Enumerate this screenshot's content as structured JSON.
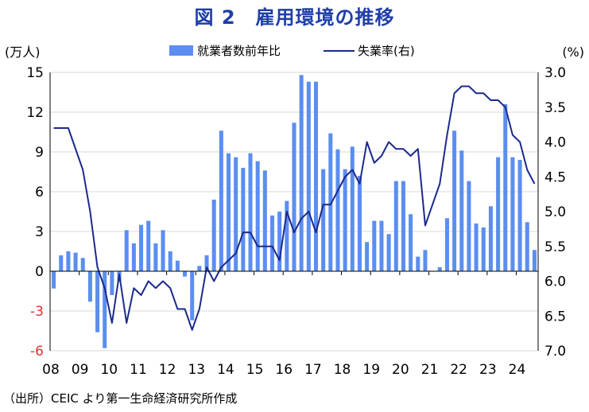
{
  "title": "図 2　雇用環境の推移",
  "source": "（出所）CEIC より第一生命経済研究所作成",
  "chart_data": {
    "type": "bar+line",
    "title": "図 2　雇用環境の推移",
    "y_left_label": "(万人)",
    "y_right_label": "(%)",
    "y_left_range": [
      -6,
      15
    ],
    "y_left_ticks": [
      "15",
      "12",
      "9",
      "6",
      "3",
      "0",
      "-3",
      "-6"
    ],
    "y_right_range": [
      3.0,
      7.0
    ],
    "y_right_inverted": true,
    "y_right_ticks": [
      "3.0",
      "3.5",
      "4.0",
      "4.5",
      "5.0",
      "5.5",
      "6.0",
      "6.5",
      "7.0"
    ],
    "x_tick_labels": [
      "08",
      "09",
      "10",
      "11",
      "12",
      "13",
      "14",
      "15",
      "16",
      "17",
      "18",
      "19",
      "20",
      "21",
      "22",
      "23",
      "24"
    ],
    "grid": "horizontal",
    "legend_position": "top",
    "series": [
      {
        "name": "就業者数前年比",
        "type": "bar",
        "axis": "left",
        "color": "#5b8ef0",
        "values": [
          -1.3,
          1.2,
          1.5,
          1.4,
          1.0,
          -2.3,
          -4.6,
          -5.8,
          -1.8,
          -0.8,
          3.1,
          2.1,
          3.5,
          3.8,
          2.1,
          3.1,
          1.5,
          0.8,
          -0.4,
          -3.7,
          0.4,
          1.2,
          5.4,
          10.6,
          8.9,
          8.6,
          7.8,
          8.9,
          8.3,
          7.6,
          4.2,
          4.5,
          5.3,
          11.2,
          14.8,
          14.3,
          14.3,
          7.7,
          10.4,
          9.2,
          7.7,
          9.4,
          7.2,
          2.2,
          3.8,
          3.8,
          2.8,
          6.8,
          6.8,
          4.3,
          1.1,
          1.6,
          0.0,
          0.3,
          4.0,
          10.6,
          9.1,
          6.8,
          3.6,
          3.3,
          4.9,
          8.6,
          12.6,
          8.6,
          8.4,
          3.7,
          1.6
        ]
      },
      {
        "name": "失業率(右)",
        "type": "line",
        "axis": "right",
        "color": "#1c2a8c",
        "values": [
          3.8,
          3.8,
          3.8,
          4.1,
          4.4,
          5.0,
          5.8,
          6.1,
          6.6,
          5.9,
          6.6,
          6.1,
          6.2,
          6.0,
          6.1,
          6.0,
          6.1,
          6.4,
          6.4,
          6.7,
          6.4,
          5.8,
          6.0,
          5.8,
          5.7,
          5.6,
          5.3,
          5.3,
          5.5,
          5.5,
          5.5,
          5.7,
          5.0,
          5.3,
          5.1,
          5.0,
          5.3,
          4.9,
          4.9,
          4.7,
          4.5,
          4.4,
          4.6,
          4.0,
          4.3,
          4.2,
          4.0,
          4.1,
          4.1,
          4.2,
          4.1,
          5.2,
          4.9,
          4.6,
          3.9,
          3.3,
          3.2,
          3.2,
          3.3,
          3.3,
          3.4,
          3.4,
          3.5,
          3.9,
          4.0,
          4.4,
          4.6
        ]
      }
    ]
  }
}
